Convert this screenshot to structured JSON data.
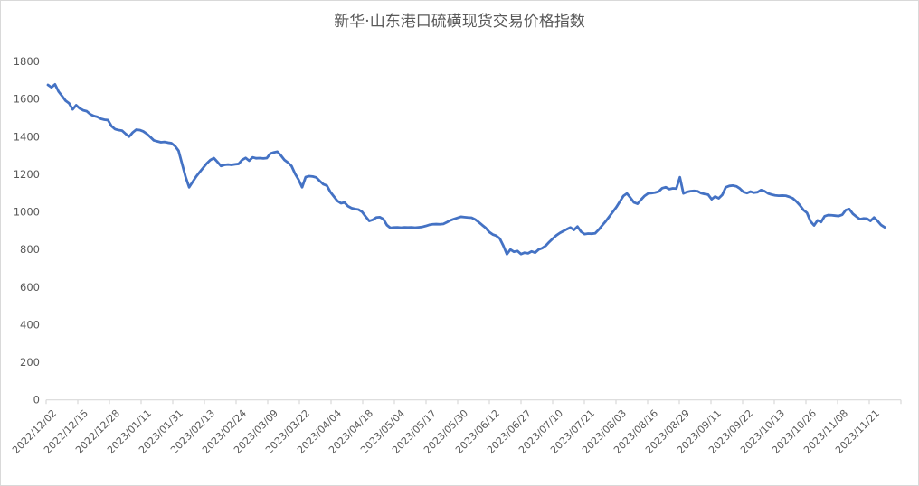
{
  "chart_data": {
    "type": "line",
    "title": "新华·山东港口硫磺现货交易价格指数",
    "xlabel": "",
    "ylabel": "",
    "ylim": [
      0,
      1800
    ],
    "y_ticks": [
      0,
      200,
      400,
      600,
      800,
      1000,
      1200,
      1400,
      1600,
      1800
    ],
    "grid": false,
    "legend": "none",
    "line_color": "#4472C4",
    "axis_line_color": "#D9D9D9",
    "tick_label_color": "#595959",
    "background_color": "#FFFFFF",
    "x_tick_labels": [
      "2022/12/02",
      "2022/12/15",
      "2022/12/28",
      "2023/01/11",
      "2023/01/31",
      "2023/02/13",
      "2023/02/24",
      "2023/03/09",
      "2023/03/22",
      "2023/04/04",
      "2023/04/18",
      "2023/05/04",
      "2023/05/17",
      "2023/05/30",
      "2023/06/12",
      "2023/06/27",
      "2023/07/10",
      "2023/07/21",
      "2023/08/03",
      "2023/08/16",
      "2023/08/29",
      "2023/09/11",
      "2023/09/22",
      "2023/10/13",
      "2023/10/26",
      "2023/11/08",
      "2023/11/21"
    ],
    "label_every_n_points": 9,
    "values": [
      1675,
      1662,
      1678,
      1640,
      1616,
      1591,
      1577,
      1545,
      1567,
      1550,
      1540,
      1535,
      1519,
      1510,
      1505,
      1495,
      1490,
      1488,
      1456,
      1440,
      1435,
      1432,
      1415,
      1400,
      1422,
      1437,
      1435,
      1428,
      1415,
      1398,
      1380,
      1375,
      1370,
      1372,
      1368,
      1365,
      1350,
      1325,
      1255,
      1185,
      1131,
      1160,
      1188,
      1212,
      1235,
      1258,
      1276,
      1286,
      1266,
      1244,
      1250,
      1252,
      1250,
      1253,
      1255,
      1276,
      1287,
      1272,
      1290,
      1285,
      1286,
      1284,
      1286,
      1310,
      1316,
      1320,
      1300,
      1276,
      1262,
      1244,
      1203,
      1171,
      1131,
      1185,
      1190,
      1188,
      1183,
      1164,
      1147,
      1140,
      1106,
      1082,
      1058,
      1046,
      1050,
      1030,
      1020,
      1015,
      1012,
      1000,
      975,
      952,
      958,
      970,
      972,
      962,
      930,
      915,
      917,
      918,
      916,
      918,
      917,
      918,
      916,
      918,
      920,
      925,
      931,
      934,
      935,
      934,
      936,
      945,
      955,
      962,
      968,
      974,
      972,
      970,
      969,
      960,
      946,
      930,
      915,
      893,
      880,
      873,
      858,
      820,
      775,
      800,
      788,
      792,
      776,
      783,
      780,
      790,
      783,
      800,
      807,
      820,
      840,
      858,
      875,
      888,
      898,
      908,
      917,
      904,
      922,
      895,
      882,
      885,
      884,
      886,
      905,
      928,
      950,
      975,
      1000,
      1025,
      1055,
      1085,
      1098,
      1075,
      1050,
      1043,
      1065,
      1085,
      1098,
      1100,
      1103,
      1108,
      1126,
      1131,
      1121,
      1125,
      1124,
      1184,
      1098,
      1106,
      1110,
      1112,
      1110,
      1100,
      1095,
      1092,
      1067,
      1082,
      1072,
      1090,
      1131,
      1138,
      1140,
      1136,
      1124,
      1106,
      1100,
      1108,
      1102,
      1105,
      1116,
      1110,
      1098,
      1092,
      1088,
      1086,
      1087,
      1086,
      1080,
      1072,
      1055,
      1035,
      1010,
      995,
      950,
      928,
      955,
      946,
      977,
      983,
      982,
      980,
      978,
      985,
      1010,
      1015,
      990,
      975,
      961,
      965,
      964,
      952,
      970,
      952,
      930,
      918
    ]
  }
}
